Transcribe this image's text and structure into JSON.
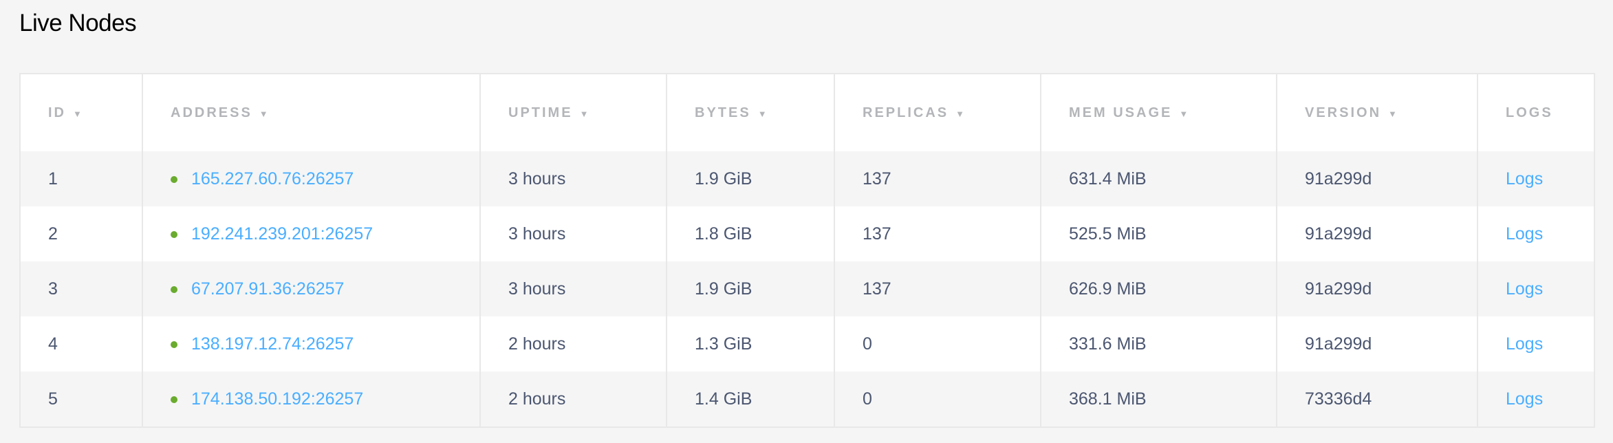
{
  "title": "Live Nodes",
  "colors": {
    "link": "#4aaeff",
    "status_live": "#6aab2e",
    "text": "#4b5670",
    "header": "#b3b5b8"
  },
  "columns": [
    {
      "label": "ID",
      "sortable": true
    },
    {
      "label": "ADDRESS",
      "sortable": true
    },
    {
      "label": "UPTIME",
      "sortable": true
    },
    {
      "label": "BYTES",
      "sortable": true
    },
    {
      "label": "REPLICAS",
      "sortable": true
    },
    {
      "label": "MEM USAGE",
      "sortable": true
    },
    {
      "label": "VERSION",
      "sortable": true
    },
    {
      "label": "LOGS",
      "sortable": false
    }
  ],
  "sort_icon": "▼",
  "rows": [
    {
      "id": "1",
      "address": "165.227.60.76:26257",
      "uptime": "3 hours",
      "bytes": "1.9 GiB",
      "replicas": "137",
      "mem": "631.4 MiB",
      "version": "91a299d",
      "logs": "Logs"
    },
    {
      "id": "2",
      "address": "192.241.239.201:26257",
      "uptime": "3 hours",
      "bytes": "1.8 GiB",
      "replicas": "137",
      "mem": "525.5 MiB",
      "version": "91a299d",
      "logs": "Logs"
    },
    {
      "id": "3",
      "address": "67.207.91.36:26257",
      "uptime": "3 hours",
      "bytes": "1.9 GiB",
      "replicas": "137",
      "mem": "626.9 MiB",
      "version": "91a299d",
      "logs": "Logs"
    },
    {
      "id": "4",
      "address": "138.197.12.74:26257",
      "uptime": "2 hours",
      "bytes": "1.3 GiB",
      "replicas": "0",
      "mem": "331.6 MiB",
      "version": "91a299d",
      "logs": "Logs"
    },
    {
      "id": "5",
      "address": "174.138.50.192:26257",
      "uptime": "2 hours",
      "bytes": "1.4 GiB",
      "replicas": "0",
      "mem": "368.1 MiB",
      "version": "73336d4",
      "logs": "Logs"
    }
  ]
}
